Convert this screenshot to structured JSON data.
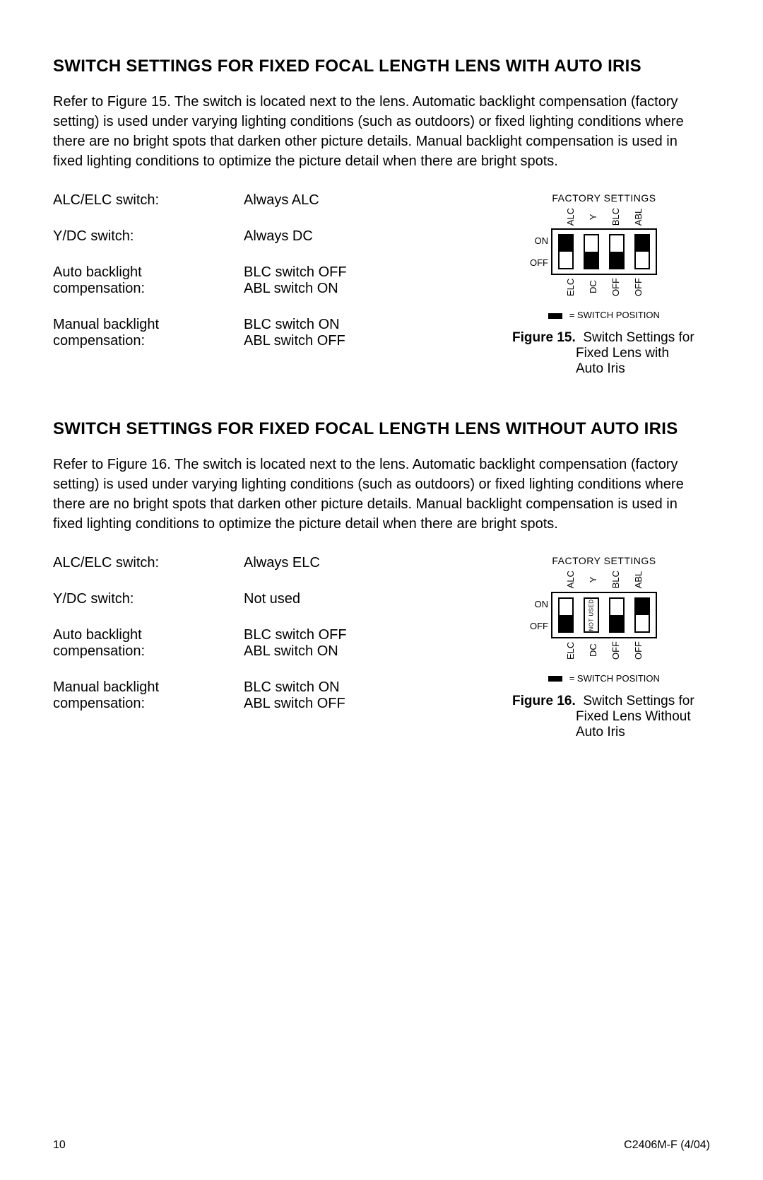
{
  "section1": {
    "heading": "SWITCH SETTINGS FOR FIXED FOCAL LENGTH LENS WITH AUTO IRIS",
    "body": "Refer to Figure 15. The switch is located next to the lens. Automatic backlight compensation (factory setting) is used under varying lighting conditions (such as outdoors) or fixed lighting conditions where there are no bright spots that darken other picture details. Manual backlight compensation is used in fixed lighting conditions to optimize the picture detail when there are bright spots.",
    "rows": [
      {
        "label": "ALC/ELC switch:",
        "value": "Always ALC"
      },
      {
        "label": "Y/DC switch:",
        "value": "Always DC"
      },
      {
        "label": "Auto backlight compensation:",
        "value": "BLC switch OFF\nABL switch ON"
      },
      {
        "label": "Manual backlight compensation:",
        "value": "BLC switch ON\nABL switch OFF"
      }
    ],
    "diagram": {
      "title": "FACTORY SETTINGS",
      "top_labels": [
        "ALC",
        "Y",
        "BLC",
        "ABL"
      ],
      "bottom_labels": [
        "ELC",
        "DC",
        "OFF",
        "OFF"
      ],
      "side_on": "ON",
      "side_off": "OFF",
      "switches": [
        {
          "position": "top",
          "not_used": false
        },
        {
          "position": "bottom",
          "not_used": false
        },
        {
          "position": "bottom",
          "not_used": false
        },
        {
          "position": "top",
          "not_used": false
        }
      ],
      "legend": "= SWITCH POSITION",
      "caption_bold": "Figure 15.",
      "caption_text": "Switch Settings for",
      "caption_line2": "Fixed Lens with",
      "caption_line3": "Auto Iris"
    }
  },
  "section2": {
    "heading": "SWITCH SETTINGS FOR FIXED FOCAL LENGTH LENS WITHOUT AUTO IRIS",
    "body": "Refer to Figure 16. The switch is located next to the lens. Automatic backlight compensation (factory setting) is used under varying lighting conditions (such as outdoors) or fixed lighting conditions where there are no bright spots that darken other picture details. Manual backlight compensation is used in fixed lighting conditions to optimize the picture detail when there are bright spots.",
    "rows": [
      {
        "label": "ALC/ELC switch:",
        "value": "Always ELC"
      },
      {
        "label": "Y/DC switch:",
        "value": "Not used"
      },
      {
        "label": "Auto backlight compensation:",
        "value": "BLC switch OFF\nABL switch ON"
      },
      {
        "label": "Manual backlight compensation:",
        "value": "BLC switch ON\nABL switch OFF"
      }
    ],
    "diagram": {
      "title": "FACTORY SETTINGS",
      "top_labels": [
        "ALC",
        "Y",
        "BLC",
        "ABL"
      ],
      "bottom_labels": [
        "ELC",
        "DC",
        "OFF",
        "OFF"
      ],
      "side_on": "ON",
      "side_off": "OFF",
      "switches": [
        {
          "position": "bottom",
          "not_used": false
        },
        {
          "position": "none",
          "not_used": true,
          "not_used_text": "NOT USED"
        },
        {
          "position": "bottom",
          "not_used": false
        },
        {
          "position": "top",
          "not_used": false
        }
      ],
      "legend": "= SWITCH POSITION",
      "caption_bold": "Figure 16.",
      "caption_text": "Switch Settings for",
      "caption_line2": "Fixed Lens Without",
      "caption_line3": "Auto Iris"
    }
  },
  "footer": {
    "page": "10",
    "doc": "C2406M-F (4/04)"
  }
}
